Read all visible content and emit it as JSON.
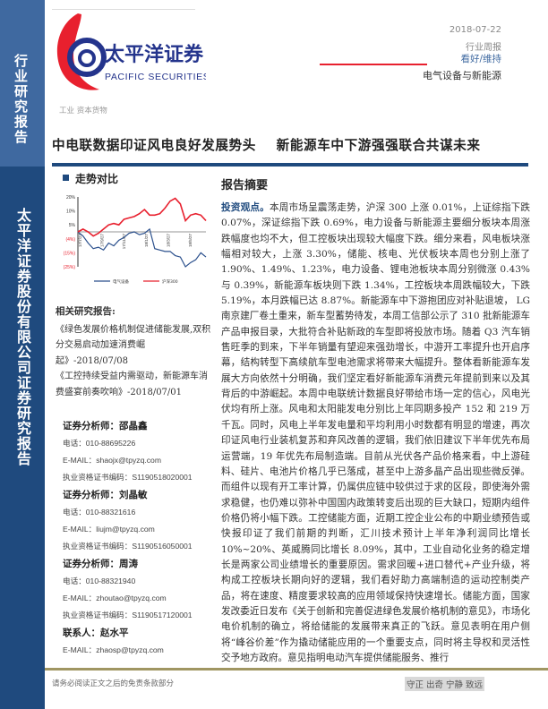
{
  "sidebar": {
    "top_label": "行业研究报告",
    "bottom_label": "太平洋证券股份有限公司证券研究报告"
  },
  "header": {
    "logo_cn": "太平洋证券",
    "logo_en": "PACIFIC SECURITIES",
    "date": "2018-07-22",
    "report_type": "行业周报",
    "rating": "看好/维持",
    "industry": "电气设备与新能源",
    "category": "工业 资本货物"
  },
  "title": "中电联数据印证风电良好发展势头    新能源车中下游强强联合共谋未来",
  "trend": {
    "heading": "走势对比"
  },
  "chart_data": {
    "type": "line",
    "y_ticks": [
      "20%",
      "10%",
      "5%",
      "(4%)",
      "(15%)",
      "(25%)"
    ],
    "ylim": [
      -25,
      25
    ],
    "x_ticks": [
      "17/7/27",
      "17/9/27",
      "17/11/27",
      "18/1/27",
      "18/3/27",
      "18/5/27"
    ],
    "legend_position": "bottom",
    "series": [
      {
        "name": "电气设备",
        "color": "#2a4f8c",
        "values": [
          0,
          -3,
          -8,
          -12,
          -11,
          -13,
          -8,
          -10,
          -6,
          -4,
          -1,
          0,
          -2,
          -1,
          2,
          -12,
          -13,
          -14,
          -14,
          -17,
          -18,
          -25,
          -22,
          -20,
          -15,
          -18
        ]
      },
      {
        "name": "沪深300",
        "color": "#e8202e",
        "values": [
          0,
          2,
          0,
          -3,
          -1,
          2,
          5,
          6,
          5,
          9,
          10,
          11,
          13,
          16,
          12,
          12,
          13,
          17,
          22,
          24,
          20,
          8,
          12,
          13,
          12,
          8
        ]
      }
    ]
  },
  "related": {
    "heading": "相关研究报告:",
    "items": [
      "《绿色发展价格机制促进储能发展,双积分交易启动加速消费崛起》-2018/07/08",
      "《工控持续受益内需驱动，新能源车消费盛宴前奏吹响》-2018/07/01"
    ]
  },
  "analysts": [
    {
      "title": "证券分析师：邵晶鑫",
      "phone": "电话：010-88695226",
      "email": "E-MAIL：shaojx@tpyzq.com",
      "cert": "执业资格证书编码：S1190518020001"
    },
    {
      "title": "证券分析师：刘晶敏",
      "phone": "电话：010-88321616",
      "email": "E-MAIL：liujm@tpyzq.com",
      "cert": "执业资格证书编码：S1190516050001"
    },
    {
      "title": "证券分析师：周涛",
      "phone": "电话：010-88321940",
      "email": "E-MAIL：zhoutao@tpyzq.com",
      "cert": "执业资格证书编码：S1190517120001"
    }
  ],
  "contact": {
    "title": "联系人：赵水平",
    "email": "E-MAIL：zhaosp@tpyzq.com"
  },
  "summary": {
    "heading": "报告摘要",
    "lead": "投资观点。",
    "text": "本周市场呈震荡走势，沪深 300 上涨 0.01%，上证综指下跌 0.07%，深证综指下跌 0.69%，电力设备与新能源主要细分板块本周涨跌幅度也均不大，但工控板块出现较大幅度下跌。细分来看，风电板块涨幅相对较大，上涨 3.30%，储能、核电、光伏板块本周也分别上涨了 1.90%、1.49%、1.23%，电力设备、锂电池板块本周分别微涨 0.43%与 0.39%，新能源车板块则下跌 1.34%，工控板块本周跌幅较大，下跌 5.19%，本月跌幅已达 8.87%。新能源车中下游抱团应对补贴退坡， LG 南京建厂卷土重来，新车型蓄势待发，本周工信部公示了 310 批新能源车产品申报目录，大批符合补贴新政的车型即将投放市场。随着 Q3 汽车销售旺季的到来，下半年销量有望迎来强劲增长，中游开工率提升也开启序幕，结构转型下高续航车型电池需求将带来大幅提升。整体看新能源车发展大方向依然十分明确，我们坚定看好新能源车消费元年提前到来以及其背后的中游崛起。本周中电联统计数据良好带给市场一定的信心，风电光伏均有所上涨。风电和太阳能发电分别比上年同期多投产 152 和 219 万千瓦。同时，风电上半年发电量和平均利用小时数都有明显的增速，再次印证风电行业装机复苏和弃风改善的逻辑，我们依旧建议下半年优先布局运营端，19 年优先布局制造端。目前从光伏各产品价格来看，中上游硅料、硅片、电池片价格几乎已落成，甚至中上游多晶产品出现些微反弹。而组件以现有开工率计算，仍属供应链中较供过于求的区段，即使海外需求稳健，也仍难以弥补中国国内政策转变后出现的巨大缺口，短期内组件价格仍将小幅下跌。工控储能方面，近期工控企业公布的中期业绩预告或快报印证了我们前期的判断，汇川技术预计上半年净利润同比增长 10%~20%、英威腾同比增长 8.09%，其中，工业自动化业务的稳定增长是两家公司业绩增长的重要原因。需求回暖+进口替代+产业升级，将构成工控板块长期向好的逻辑，我们看好助力高端制造的运动控制类产品，将在速度、精度要求较高的应用领域保持快速增长。储能方面，国家发改委近日发布《关于创新和完善促进绿色发展价格机制的意见》，市场化电价机制的确立，将给储能的发展带来真正的飞跃。意见表明在用户侧将“峰谷价差”作为撬动储能应用的一个重要支点，同时将主导权和灵活性交予地方政府。意见指明电动汽车提供储能服务、推行"
  },
  "footer": {
    "disclaimer": "请务必阅读正文之后的免责条款部分",
    "motto": "守正 出奇 宁静 致远"
  }
}
